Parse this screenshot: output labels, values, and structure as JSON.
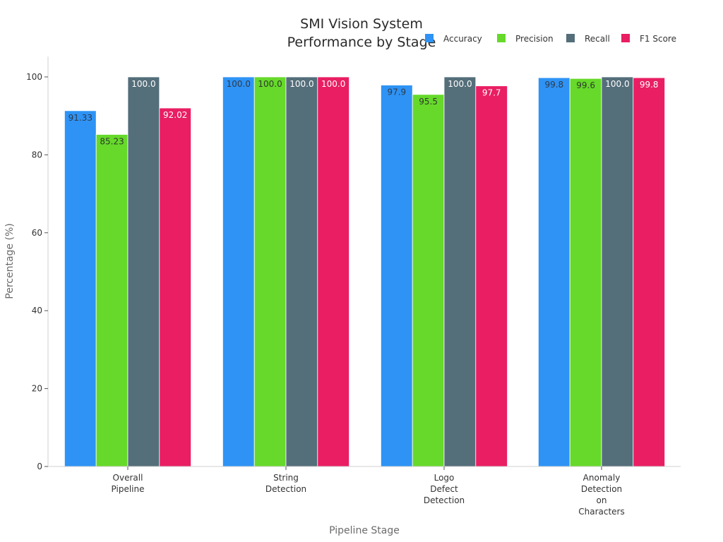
{
  "chart_data": {
    "type": "bar",
    "title": [
      "SMI Vision System",
      "Performance by Stage"
    ],
    "xlabel": "Pipeline Stage",
    "ylabel": "Percentage (%)",
    "ylim": [
      0,
      105
    ],
    "yticks": [
      0,
      20,
      40,
      60,
      80,
      100
    ],
    "grid": false,
    "legend_position": "top-right",
    "categories": [
      [
        "Overall",
        "Pipeline"
      ],
      [
        "String",
        "Detection"
      ],
      [
        "Logo",
        "Defect",
        "Detection"
      ],
      [
        "Anomaly",
        "Detection",
        "on",
        "Characters"
      ]
    ],
    "series": [
      {
        "name": "Accuracy",
        "color": "#2e93f5",
        "label_color": "#2e3a4a",
        "values": [
          91.33,
          100.0,
          97.9,
          99.8
        ],
        "labels": [
          "91.33",
          "100.0",
          "97.9",
          "99.8"
        ]
      },
      {
        "name": "Precision",
        "color": "#66d92a",
        "label_color": "#2e3a2a",
        "values": [
          85.23,
          100.0,
          95.5,
          99.6
        ],
        "labels": [
          "85.23",
          "100.0",
          "95.5",
          "99.6"
        ]
      },
      {
        "name": "Recall",
        "color": "#546e7a",
        "label_color": "#ffffff",
        "values": [
          100.0,
          100.0,
          100.0,
          100.0
        ],
        "labels": [
          "100.0",
          "100.0",
          "100.0",
          "100.0"
        ]
      },
      {
        "name": "F1 Score",
        "color": "#e91e63",
        "label_color": "#ffffff",
        "values": [
          92.02,
          100.0,
          97.7,
          99.8
        ],
        "labels": [
          "92.02",
          "100.0",
          "97.7",
          "99.8"
        ]
      }
    ]
  }
}
